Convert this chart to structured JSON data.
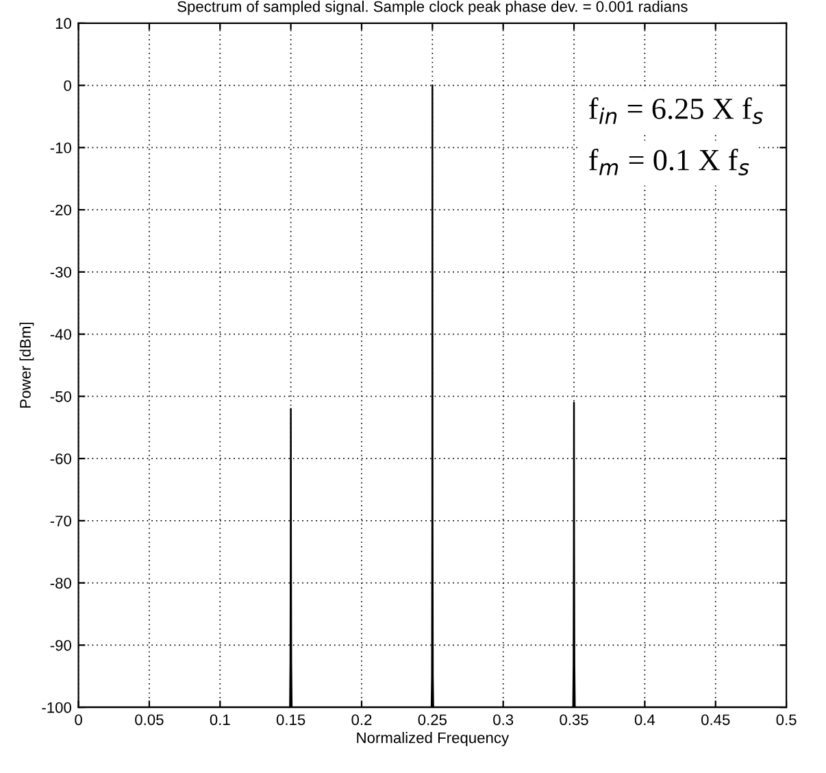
{
  "chart_data": {
    "type": "line",
    "title": "Spectrum of sampled signal. Sample clock peak phase dev. = 0.001 radians",
    "xlabel": "Normalized Frequency",
    "ylabel": "Power [dBm]",
    "annotations": [
      "f$_{in}$ = 6.25 X f$_{s}$",
      "f$_{m}$ = 0.1 X f$_{s}$"
    ],
    "series": [
      {
        "color": "#000000",
        "x": [
          0.0,
          0.1494,
          0.1497,
          0.1499,
          0.15,
          0.1501,
          0.1503,
          0.1506,
          0.2494,
          0.2497,
          0.2499,
          0.25,
          0.2501,
          0.2503,
          0.2506,
          0.3494,
          0.3497,
          0.3499,
          0.35,
          0.3501,
          0.3503,
          0.3506,
          0.5
        ],
        "values": [
          -100,
          -100,
          -93,
          -74,
          -52,
          -74,
          -93,
          -100,
          -100,
          -95,
          -69,
          0,
          -69,
          -95,
          -100,
          -100,
          -93,
          -73,
          -51,
          -73,
          -93,
          -100,
          -100
        ]
      }
    ],
    "xlim": [
      0,
      0.5
    ],
    "ylim": [
      -100,
      10
    ],
    "xticks": [
      0,
      0.05,
      0.1,
      0.15,
      0.2,
      0.25,
      0.3,
      0.35,
      0.4,
      0.45,
      0.5
    ],
    "yticks": [
      10,
      0,
      -10,
      -20,
      -30,
      -40,
      -50,
      -60,
      -70,
      -80,
      -90,
      -100
    ],
    "grid": true,
    "line_style": "solid",
    "marker": "none"
  }
}
